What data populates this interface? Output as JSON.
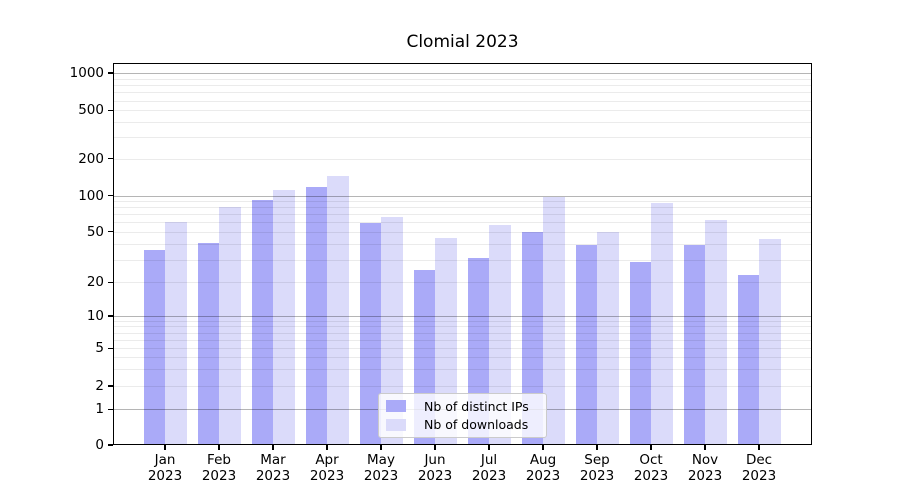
{
  "title": "Clomial 2023",
  "chart_data": {
    "type": "bar",
    "title": "Clomial 2023",
    "categories": [
      "Jan 2023",
      "Feb 2023",
      "Mar 2023",
      "Apr 2023",
      "May 2023",
      "Jun 2023",
      "Jul 2023",
      "Aug 2023",
      "Sep 2023",
      "Oct 2023",
      "Nov 2023",
      "Dec 2023"
    ],
    "series": [
      {
        "name": "Nb of distinct IPs",
        "color": "#aaaaf8",
        "values": [
          36,
          41,
          92,
          118,
          59,
          25,
          31,
          50,
          39,
          29,
          39,
          23
        ]
      },
      {
        "name": "Nb of downloads",
        "color": "#dbdbfa",
        "values": [
          60,
          80,
          110,
          145,
          66,
          45,
          57,
          97,
          50,
          86,
          62,
          44
        ]
      }
    ],
    "xlabel": "",
    "ylabel": "",
    "y_scale": "symlog",
    "y_ticks": [
      0,
      1,
      2,
      5,
      10,
      20,
      50,
      100,
      200,
      500,
      1000
    ],
    "ylim": [
      0,
      1216
    ],
    "grid": "on",
    "grid_major_at": [
      1,
      10,
      100,
      1000
    ],
    "grid_major_color": "#b5b5b5",
    "grid_minor_color": "#ececec",
    "legend_position": "lower center inside plot",
    "axis_color": "#000000",
    "background_color": "#ffffff"
  }
}
